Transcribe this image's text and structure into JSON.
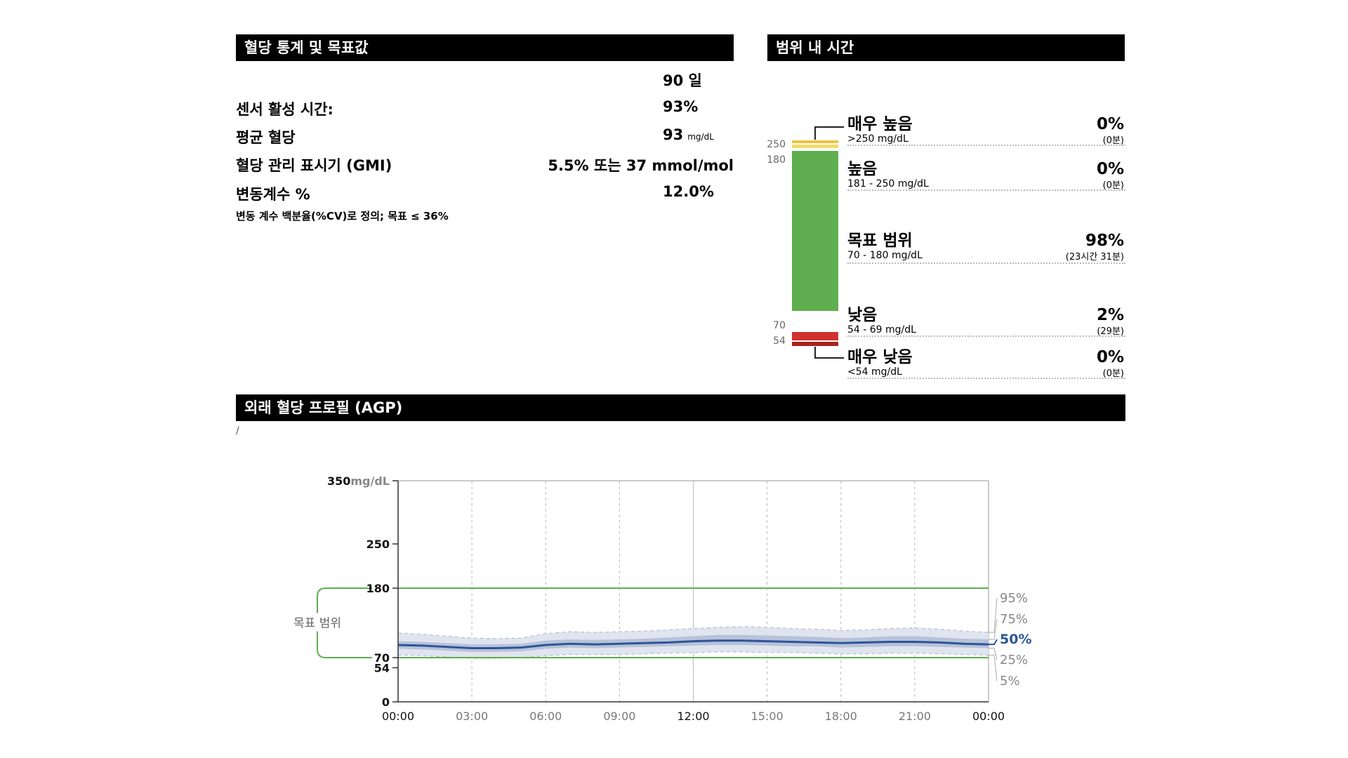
{
  "stats": {
    "header": "혈당 통계 및 목표값",
    "period": "90 일",
    "sensor_label": "센서 활성 시간:",
    "sensor_value": "93%",
    "mean_label": "평균 혈당",
    "mean_value": "93",
    "mean_unit": "mg/dL",
    "gmi_label": "혈당 관리 표시기 (GMI)",
    "gmi_value": "5.5% 또는 37 mmol/mol",
    "cv_label": "변동계수 %",
    "cv_value": "12.0%",
    "cv_note": "변동 계수 백분율(%CV)로 정의; 목표 ≤ 36%"
  },
  "tir": {
    "header": "범위 내 시간",
    "scale": [
      "250",
      "180",
      "70",
      "54"
    ],
    "colors": {
      "very_high": "#f0c23a",
      "high": "#f5d86a",
      "target": "#5fae4f",
      "low": "#d2322d",
      "very_low": "#a8231f"
    },
    "rows": [
      {
        "label": "매우 높음",
        "range": ">250 mg/dL",
        "pct": "0%",
        "time": "(0분)"
      },
      {
        "label": "높음",
        "range": "181 - 250 mg/dL",
        "pct": "0%",
        "time": "(0분)"
      },
      {
        "label": "목표 범위",
        "range": "70 - 180 mg/dL",
        "pct": "98%",
        "time": "(23시간 31분)"
      },
      {
        "label": "낮음",
        "range": "54 - 69 mg/dL",
        "pct": "2%",
        "time": "(29분)"
      },
      {
        "label": "매우 낮음",
        "range": "<54 mg/dL",
        "pct": "0%",
        "time": "(0분)"
      }
    ]
  },
  "agp": {
    "header": "외래 혈당 프로필 (AGP)",
    "stub": "/",
    "target_label": "목표 범위",
    "y_unit": "mg/dL",
    "percentile_labels": [
      "95%",
      "75%",
      "50%",
      "25%",
      "5%"
    ]
  },
  "chart_data": {
    "type": "area",
    "ylim": [
      0,
      350
    ],
    "yticks": [
      0,
      54,
      70,
      180,
      250,
      350
    ],
    "xticks": [
      "00:00",
      "03:00",
      "06:00",
      "09:00",
      "12:00",
      "15:00",
      "18:00",
      "21:00",
      "00:00"
    ],
    "target_range": [
      70,
      180
    ],
    "x": [
      0,
      1,
      2,
      3,
      4,
      5,
      6,
      7,
      8,
      9,
      10,
      11,
      12,
      13,
      14,
      15,
      16,
      17,
      18,
      19,
      20,
      21,
      22,
      23,
      24
    ],
    "series": [
      {
        "name": "95%",
        "values": [
          109,
          107,
          104,
          101,
          100,
          101,
          108,
          111,
          110,
          111,
          112,
          114,
          116,
          118,
          119,
          118,
          116,
          115,
          113,
          114,
          116,
          117,
          115,
          112,
          110
        ]
      },
      {
        "name": "75%",
        "values": [
          96,
          95,
          93,
          91,
          91,
          92,
          97,
          99,
          98,
          99,
          100,
          102,
          104,
          106,
          106,
          105,
          104,
          103,
          101,
          102,
          104,
          104,
          102,
          100,
          99
        ]
      },
      {
        "name": "50%",
        "values": [
          90,
          89,
          87,
          85,
          85,
          86,
          90,
          92,
          91,
          92,
          93,
          94,
          96,
          97,
          97,
          96,
          95,
          94,
          93,
          94,
          95,
          95,
          94,
          92,
          91
        ]
      },
      {
        "name": "25%",
        "values": [
          84,
          83,
          81,
          79,
          79,
          80,
          84,
          86,
          85,
          86,
          87,
          88,
          89,
          90,
          90,
          89,
          88,
          88,
          86,
          87,
          88,
          88,
          87,
          86,
          85
        ]
      },
      {
        "name": "5%",
        "values": [
          74,
          73,
          71,
          69,
          69,
          70,
          73,
          75,
          75,
          75,
          76,
          77,
          78,
          79,
          79,
          78,
          78,
          77,
          76,
          76,
          77,
          77,
          76,
          75,
          74
        ]
      }
    ]
  }
}
